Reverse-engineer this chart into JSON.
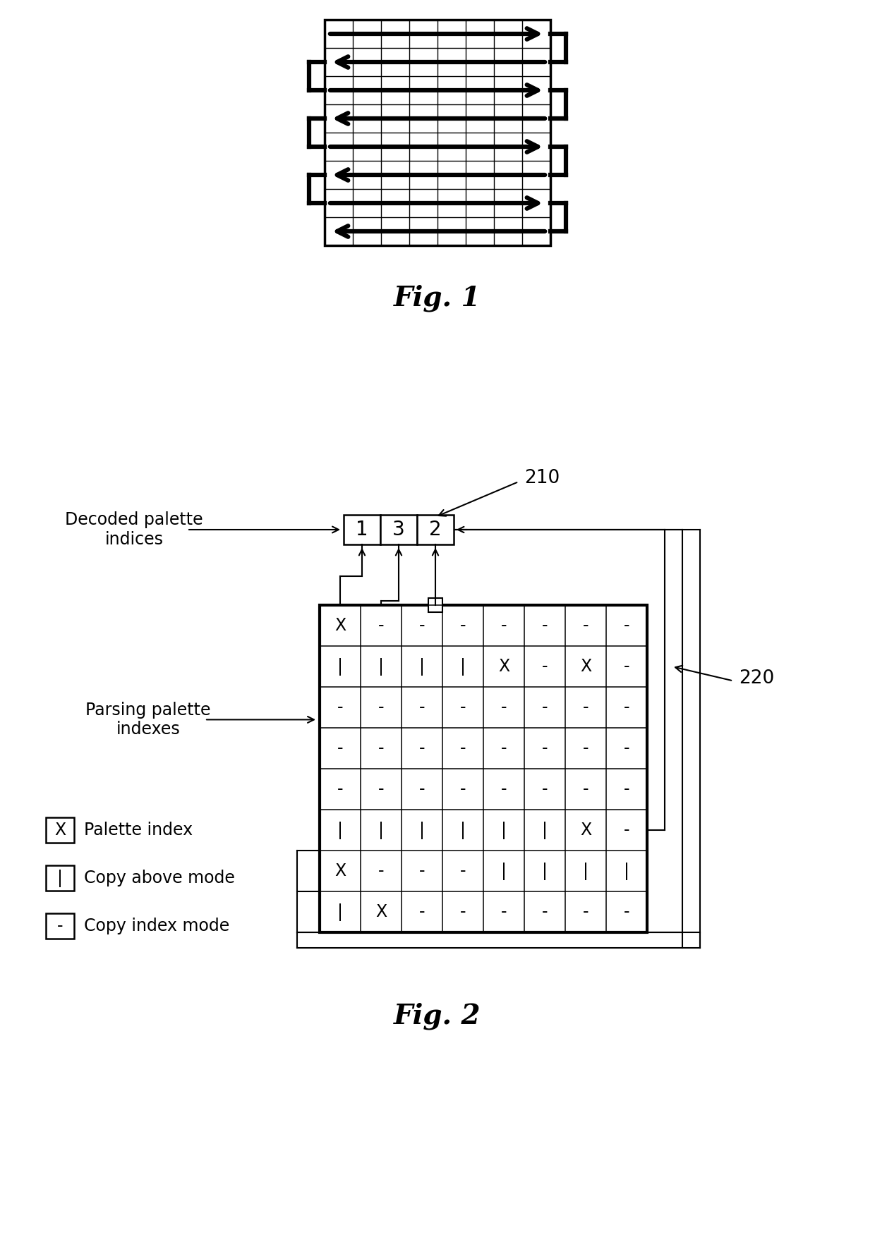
{
  "fig1_caption": "Fig. 1",
  "fig2_caption": "Fig. 2",
  "palette_box_values": [
    "1",
    "3",
    "2"
  ],
  "grid2_data": [
    [
      "X",
      "-",
      "-",
      "-",
      "-",
      "-",
      "-",
      "-"
    ],
    [
      "|",
      "|",
      "|",
      "|",
      "X",
      "-",
      "X",
      "-"
    ],
    [
      "-",
      "-",
      "-",
      "-",
      "-",
      "-",
      "-",
      "-"
    ],
    [
      "-",
      "-",
      "-",
      "-",
      "-",
      "-",
      "-",
      "-"
    ],
    [
      "-",
      "-",
      "-",
      "-",
      "-",
      "-",
      "-",
      "-"
    ],
    [
      "|",
      "|",
      "|",
      "|",
      "|",
      "|",
      "X",
      "-"
    ],
    [
      "X",
      "-",
      "-",
      "-",
      "|",
      "|",
      "|",
      "|"
    ],
    [
      "|",
      "X",
      "-",
      "-",
      "-",
      "-",
      "-",
      "-"
    ]
  ],
  "legend_items": [
    {
      "symbol": "X",
      "label": "Palette index"
    },
    {
      "symbol": "|",
      "label": "Copy above mode"
    },
    {
      "symbol": "-",
      "label": "Copy index mode"
    }
  ],
  "text_decoded": "Decoded palette\nindices",
  "text_parsing": "Parsing palette\nindexes",
  "label_210": "210",
  "label_220": "220",
  "bg_color": "#ffffff",
  "line_color": "#000000"
}
